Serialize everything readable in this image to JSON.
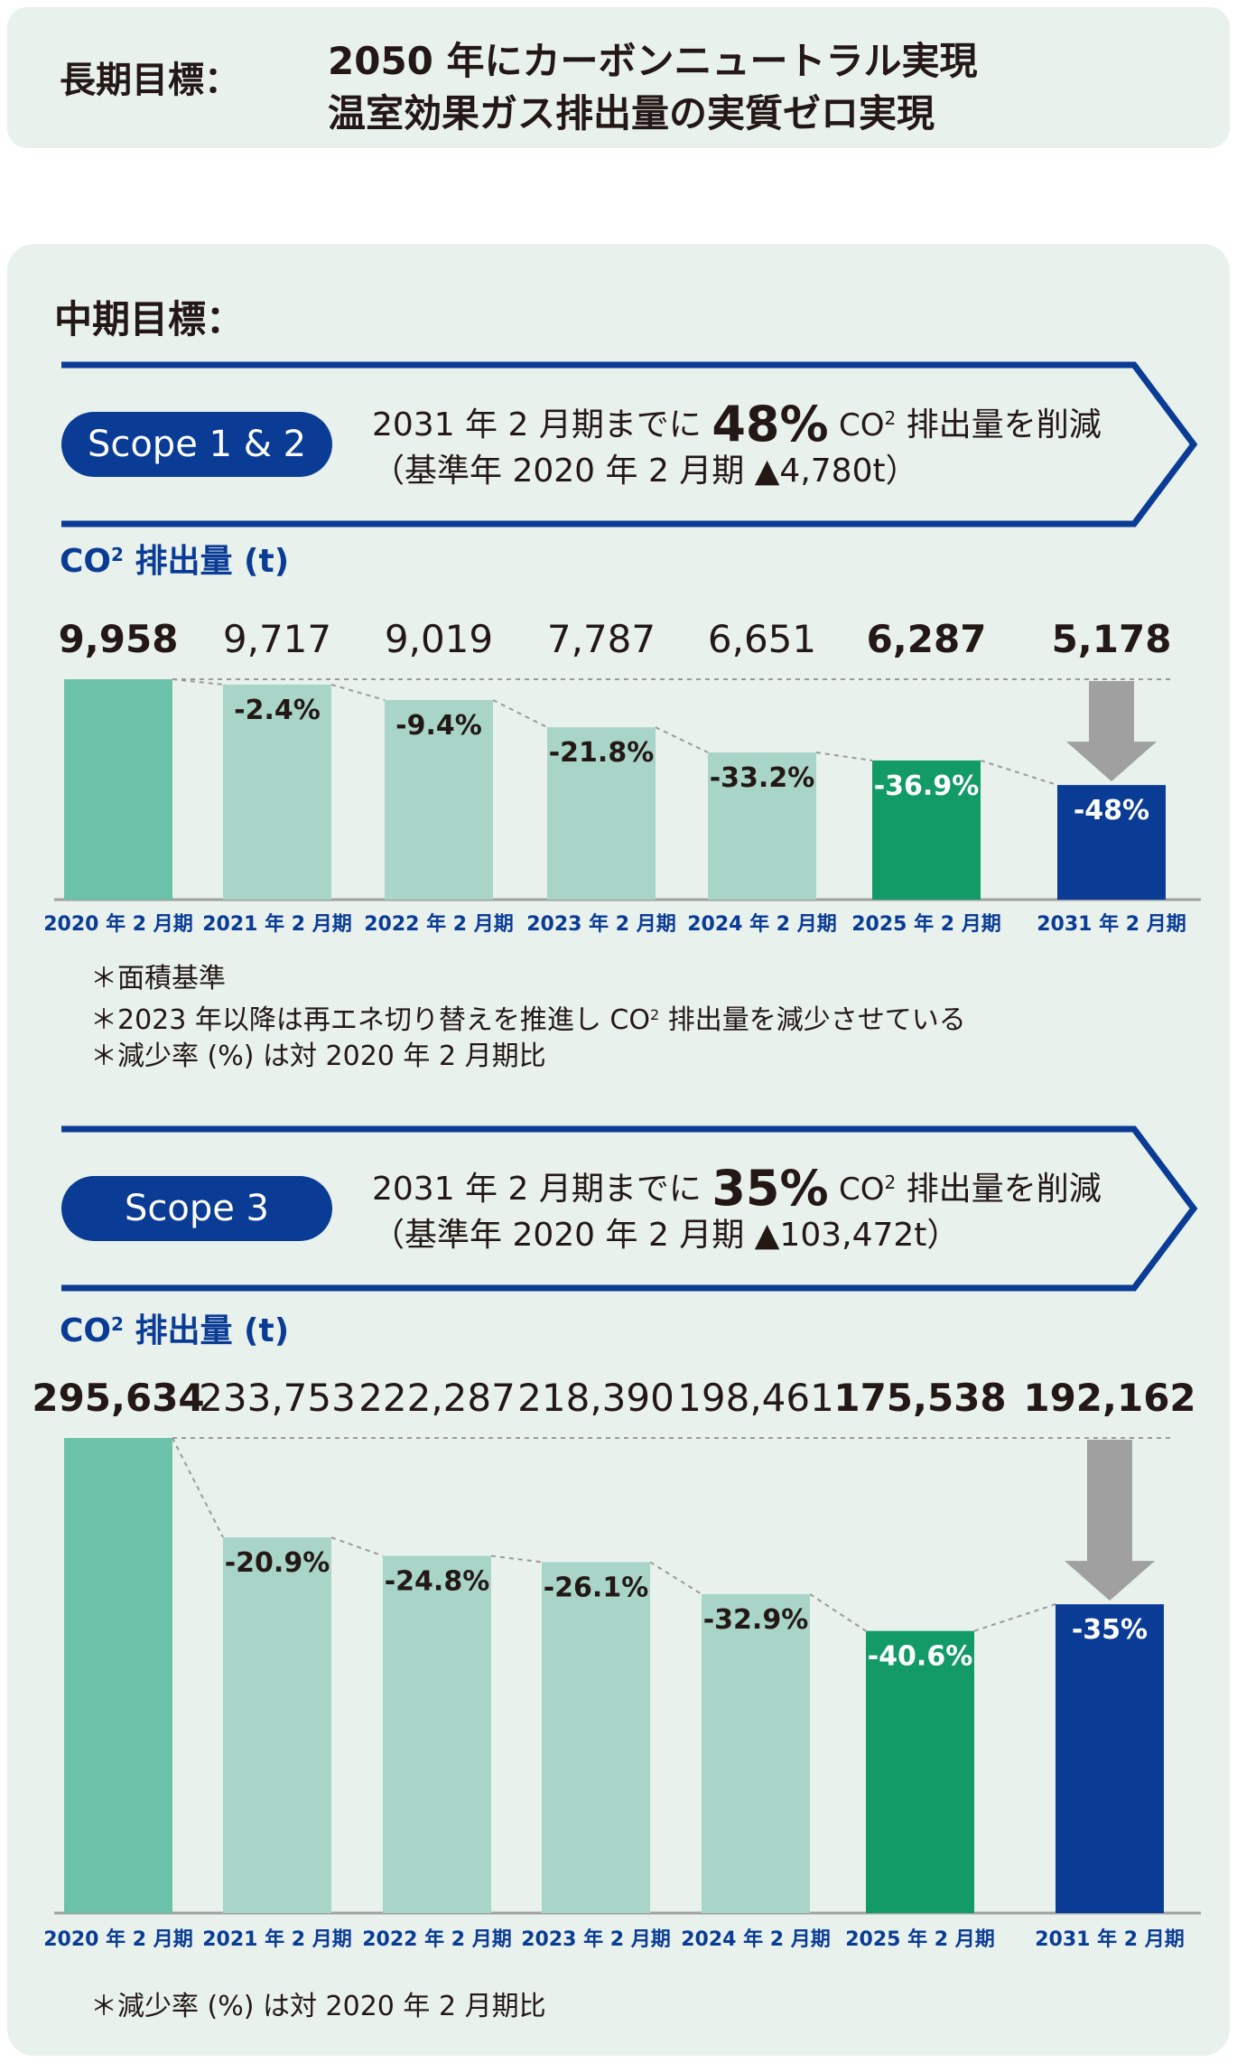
{
  "long_term": {
    "label": "長期目標：",
    "line1": "2050 年にカーボンニュートラル実現",
    "line2": "温室効果ガス排出量の実質ゼロ実現"
  },
  "mid_term": {
    "label": "中期目標："
  },
  "scope12": {
    "pill": "Scope 1 & 2",
    "target_prefix": "2031 年 2 月期までに",
    "target_pct": "48%",
    "target_suffix_co": "CO",
    "target_suffix_sub": "2",
    "target_suffix": "排出量を削減",
    "baseline": "（基準年 2020 年 2 月期 ▲4,780t）",
    "unit_co": "CO",
    "unit_sub": "2",
    "unit_rest": "排出量 (t)",
    "notes": [
      "＊面積基準",
      "＊2023 年以降は再エネ切り替えを推進し CO",
      "＊減少率 (%) は対 2020 年 2 月期比"
    ],
    "note_sub": "2",
    "note_tail": "排出量を減少させている"
  },
  "scope3": {
    "pill": "Scope 3",
    "target_prefix": "2031 年 2 月期までに",
    "target_pct": "35%",
    "target_suffix_co": "CO",
    "target_suffix_sub": "2",
    "target_suffix": "排出量を削減",
    "baseline": "（基準年 2020 年 2 月期 ▲103,472t）",
    "unit_co": "CO",
    "unit_sub": "2",
    "unit_rest": "排出量 (t)",
    "notes": [
      "＊減少率 (%) は対 2020 年 2 月期比"
    ]
  },
  "colors": {
    "navy": "#0a3c96",
    "base_bar": "#6cc1a9",
    "light_bar": "#a9d4c8",
    "green_bar": "#139b67",
    "target_bar": "#0a3c96",
    "arrow": "#a0a0a0",
    "panel_bg": "#e8f1ec"
  },
  "chart_data": [
    {
      "type": "bar",
      "categories": [
        "2020 年 2 月期",
        "2021 年 2 月期",
        "2022 年 2 月期",
        "2023 年 2 月期",
        "2024 年 2 月期",
        "2025 年 2 月期",
        "2031 年 2 月期"
      ],
      "values": [
        9958,
        9717,
        9019,
        7787,
        6651,
        6287,
        5178
      ],
      "value_labels": [
        "9,958",
        "9,717",
        "9,019",
        "7,787",
        "6,651",
        "6,287",
        "5,178"
      ],
      "change_labels": [
        "",
        "-2.4%",
        "-9.4%",
        "-21.8%",
        "-33.2%",
        "-36.9%",
        "-48%"
      ],
      "bold_values": [
        true,
        false,
        false,
        false,
        false,
        true,
        true
      ],
      "bar_kinds": [
        "base",
        "light",
        "light",
        "light",
        "light",
        "green",
        "target"
      ],
      "target_arrow_index": 6,
      "ylim": [
        0,
        9958
      ]
    },
    {
      "type": "bar",
      "categories": [
        "2020 年 2 月期",
        "2021 年 2 月期",
        "2022 年 2 月期",
        "2023 年 2 月期",
        "2024 年 2 月期",
        "2025 年 2 月期",
        "2031 年 2 月期"
      ],
      "values": [
        295634,
        233753,
        222287,
        218390,
        198461,
        175538,
        192162
      ],
      "value_labels": [
        "295,634",
        "233,753",
        "222,287",
        "218,390",
        "198,461",
        "175,538",
        "192,162"
      ],
      "change_labels": [
        "",
        "-20.9%",
        "-24.8%",
        "-26.1%",
        "-32.9%",
        "-40.6%",
        "-35%"
      ],
      "bold_values": [
        true,
        false,
        false,
        false,
        false,
        true,
        true
      ],
      "bar_kinds": [
        "base",
        "light",
        "light",
        "light",
        "light",
        "green",
        "target"
      ],
      "target_arrow_index": 6,
      "ylim": [
        0,
        295634
      ]
    }
  ]
}
